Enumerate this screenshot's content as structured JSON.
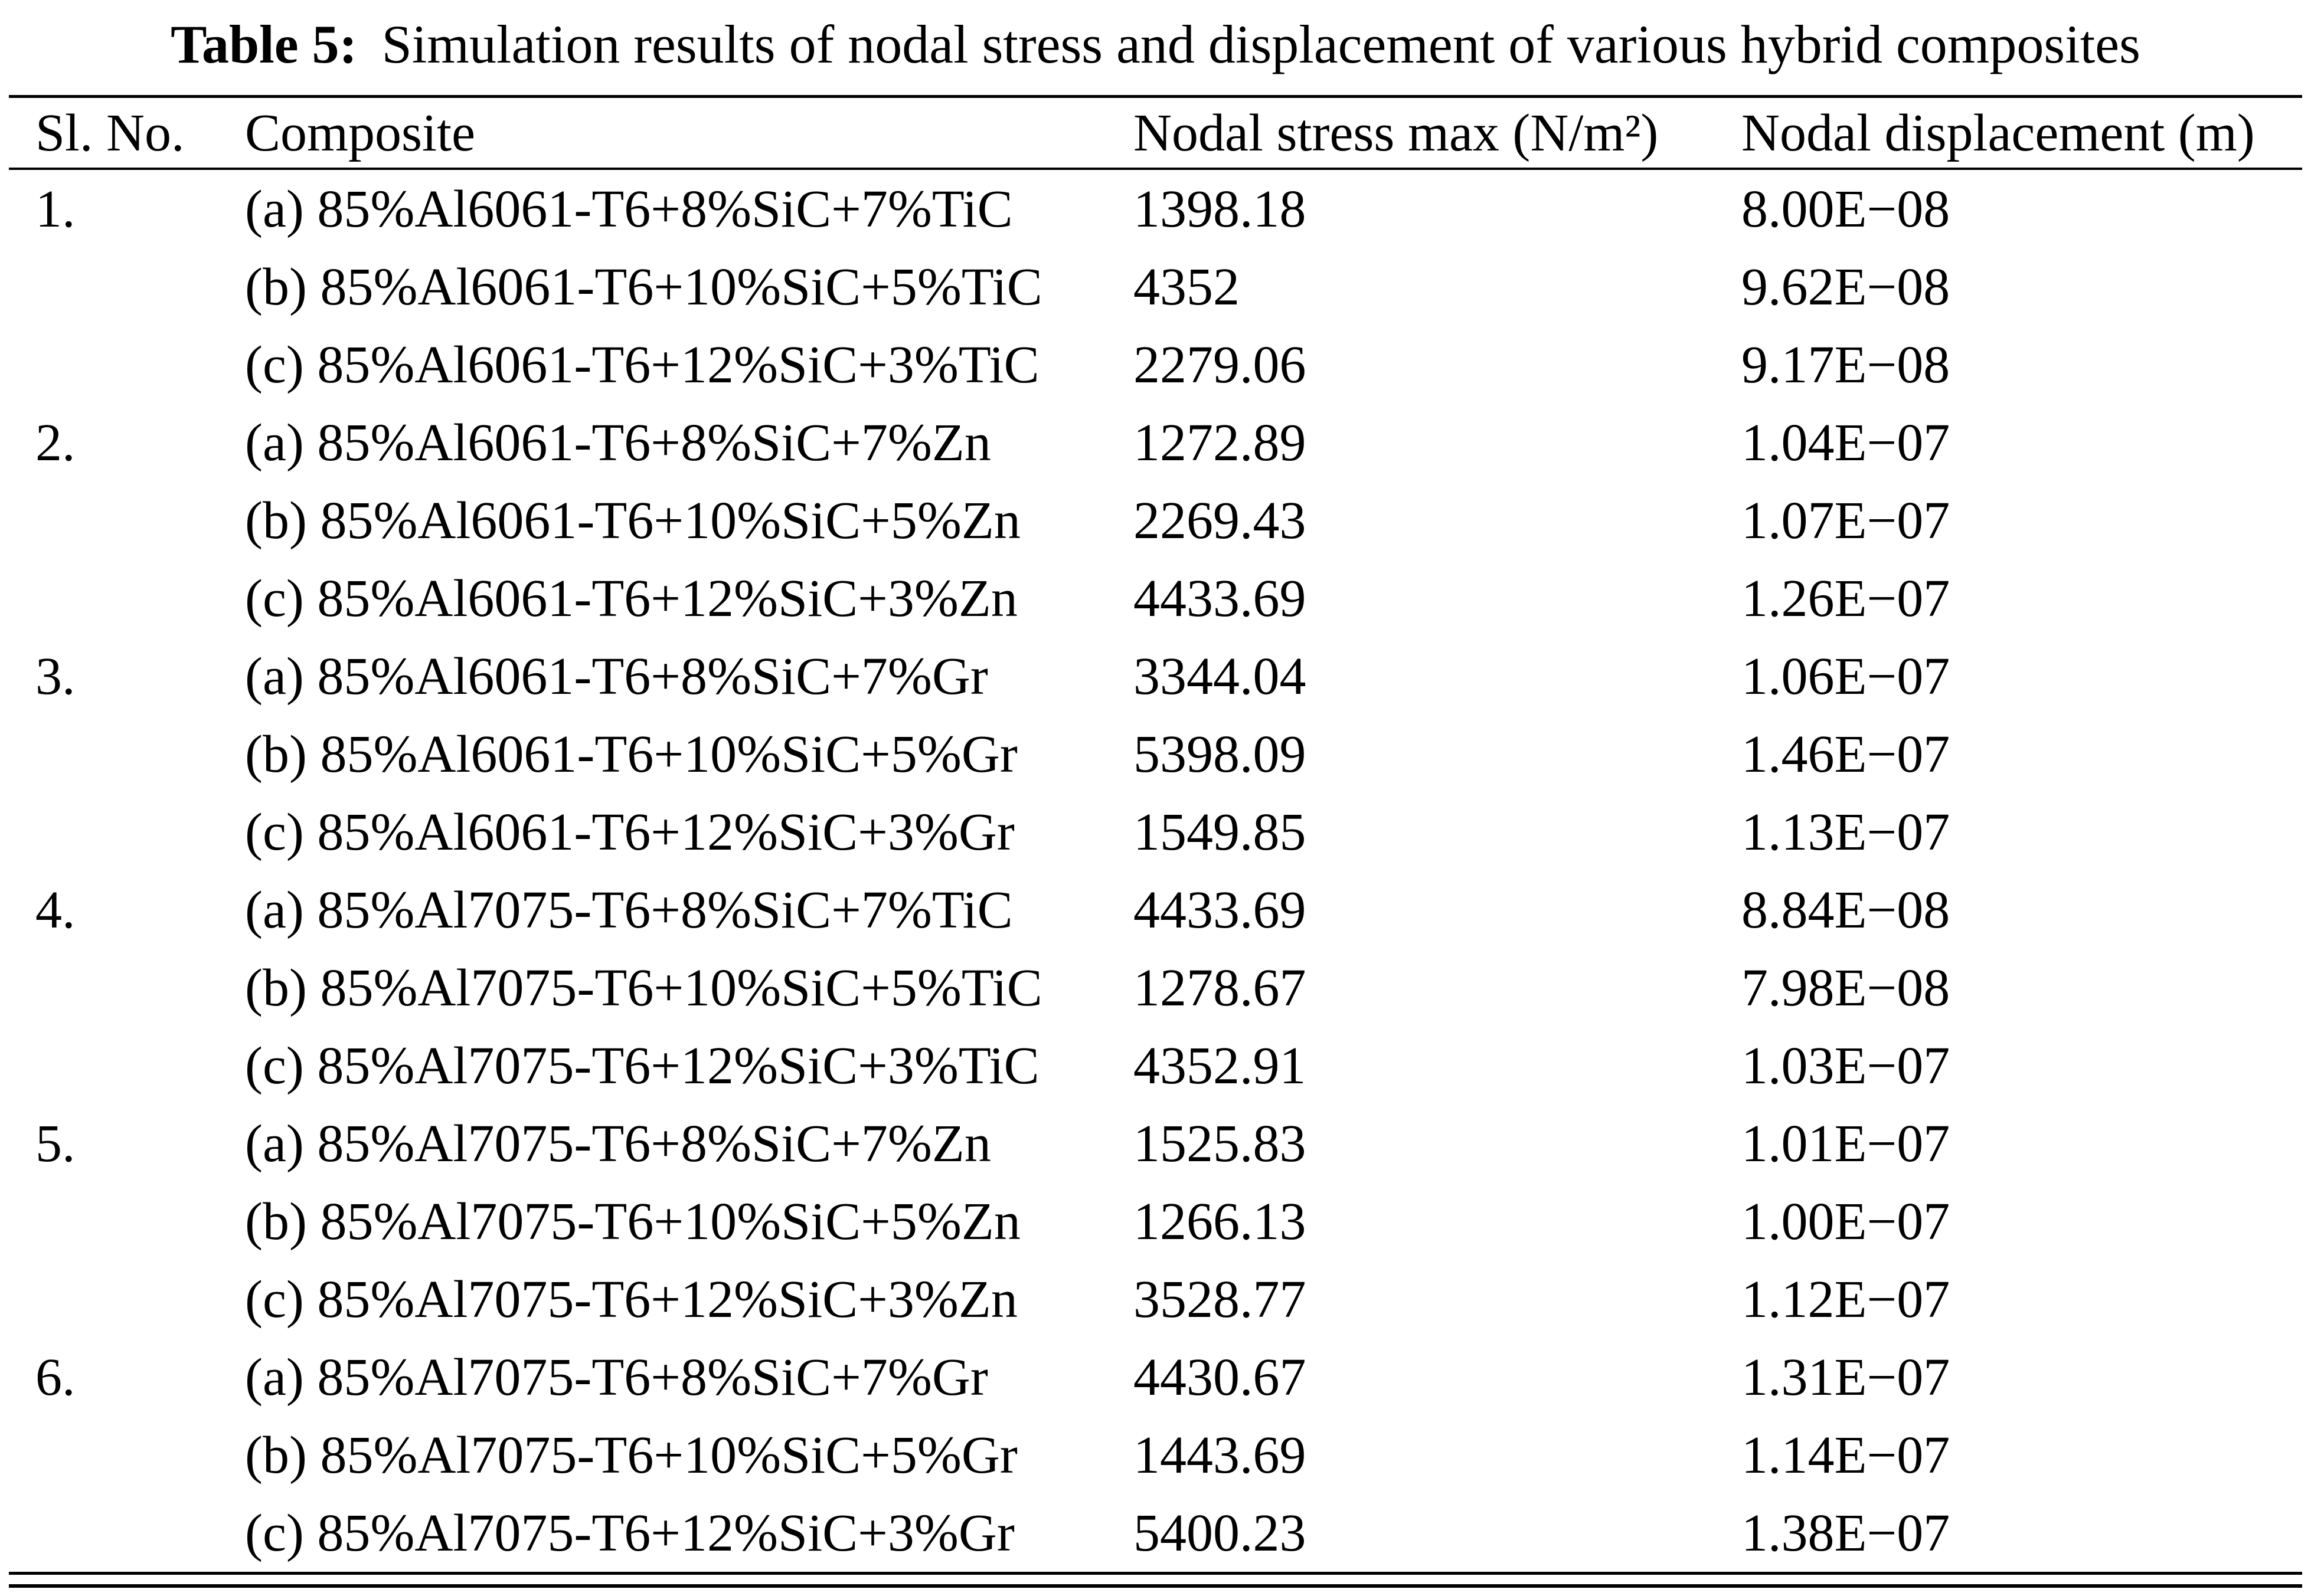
{
  "title": {
    "label": "Table 5:",
    "text": "Simulation results of nodal stress and displacement of various hybrid composites"
  },
  "table": {
    "columns": {
      "sl": "Sl. No.",
      "composite": "Composite",
      "stress": "Nodal stress max (N/m²)",
      "displacement": "Nodal displacement (m)"
    },
    "rows": [
      {
        "sl": "1.",
        "composite": "(a) 85%Al6061-T6+8%SiC+7%TiC",
        "stress": "1398.18",
        "disp": "8.00E−08"
      },
      {
        "sl": "",
        "composite": "(b) 85%Al6061-T6+10%SiC+5%TiC",
        "stress": "4352",
        "disp": "9.62E−08"
      },
      {
        "sl": "",
        "composite": "(c) 85%Al6061-T6+12%SiC+3%TiC",
        "stress": "2279.06",
        "disp": "9.17E−08"
      },
      {
        "sl": "2.",
        "composite": "(a) 85%Al6061-T6+8%SiC+7%Zn",
        "stress": "1272.89",
        "disp": "1.04E−07"
      },
      {
        "sl": "",
        "composite": "(b) 85%Al6061-T6+10%SiC+5%Zn",
        "stress": "2269.43",
        "disp": "1.07E−07"
      },
      {
        "sl": "",
        "composite": "(c) 85%Al6061-T6+12%SiC+3%Zn",
        "stress": "4433.69",
        "disp": "1.26E−07"
      },
      {
        "sl": "3.",
        "composite": "(a) 85%Al6061-T6+8%SiC+7%Gr",
        "stress": "3344.04",
        "disp": "1.06E−07"
      },
      {
        "sl": "",
        "composite": "(b) 85%Al6061-T6+10%SiC+5%Gr",
        "stress": "5398.09",
        "disp": "1.46E−07"
      },
      {
        "sl": "",
        "composite": "(c) 85%Al6061-T6+12%SiC+3%Gr",
        "stress": "1549.85",
        "disp": "1.13E−07"
      },
      {
        "sl": "4.",
        "composite": "(a) 85%Al7075-T6+8%SiC+7%TiC",
        "stress": "4433.69",
        "disp": "8.84E−08"
      },
      {
        "sl": "",
        "composite": "(b) 85%Al7075-T6+10%SiC+5%TiC",
        "stress": "1278.67",
        "disp": "7.98E−08"
      },
      {
        "sl": "",
        "composite": "(c) 85%Al7075-T6+12%SiC+3%TiC",
        "stress": "4352.91",
        "disp": "1.03E−07"
      },
      {
        "sl": "5.",
        "composite": "(a) 85%Al7075-T6+8%SiC+7%Zn",
        "stress": "1525.83",
        "disp": "1.01E−07"
      },
      {
        "sl": "",
        "composite": "(b) 85%Al7075-T6+10%SiC+5%Zn",
        "stress": "1266.13",
        "disp": "1.00E−07"
      },
      {
        "sl": "",
        "composite": "(c) 85%Al7075-T6+12%SiC+3%Zn",
        "stress": "3528.77",
        "disp": "1.12E−07"
      },
      {
        "sl": "6.",
        "composite": "(a) 85%Al7075-T6+8%SiC+7%Gr",
        "stress": "4430.67",
        "disp": "1.31E−07"
      },
      {
        "sl": "",
        "composite": "(b) 85%Al7075-T6+10%SiC+5%Gr",
        "stress": "1443.69",
        "disp": "1.14E−07"
      },
      {
        "sl": "",
        "composite": "(c) 85%Al7075-T6+12%SiC+3%Gr",
        "stress": "5400.23",
        "disp": "1.38E−07"
      }
    ]
  }
}
